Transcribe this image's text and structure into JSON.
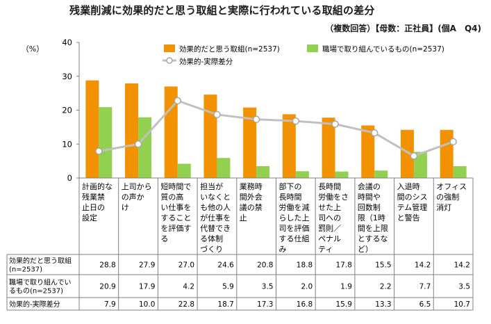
{
  "title": "残業削減に効果的だと思う取組と実際に行われている取組の差分",
  "subtitle": "（複数回答）【母数：正社員】(個A　Q4)",
  "y_unit": "（%）",
  "colors": {
    "effective": "#F39200",
    "implemented": "#92D050",
    "difference": "#C0C0C0",
    "grid": "#808080"
  },
  "chart_data": {
    "type": "bar",
    "ylim": [
      0,
      40
    ],
    "yticks": [
      0,
      10,
      20,
      30,
      40
    ],
    "grid": false,
    "legend_position": "top-right",
    "categories": [
      "計画的な残業禁止日の設定",
      "上司からの声かけ",
      "短時間で質の高い仕事をすることを評価する",
      "担当がいなくとも他の人が仕事を代替できる体制づくり",
      "業務時間外会議の禁止",
      "部下の長時間労働を減らした上司を評価する仕組み",
      "長時間労働をさせた上司への罰則／ペナルティ",
      "会議の時間や回数制限（1時間を上限とするなど）",
      "入退時間のシステム管理と警告",
      "オフィスの強制消灯"
    ],
    "category_lines": [
      [
        "計画的な",
        "残業禁",
        "止日の",
        "設定"
      ],
      [
        "上司から",
        "の声か",
        "け"
      ],
      [
        "短時間で",
        "質の高",
        "い仕事を",
        "すること",
        "を評価す",
        "る"
      ],
      [
        "担当が",
        "いなくと",
        "も他の人",
        "が仕事を",
        "代替でき",
        "る体制",
        "づくり"
      ],
      [
        "業務時",
        "間外会",
        "議の禁",
        "止"
      ],
      [
        "部下の",
        "長時間",
        "労働を減",
        "らした上",
        "司を評価",
        "する仕組",
        "み"
      ],
      [
        "長時間",
        "労働をさ",
        "せた上",
        "司への",
        "罰則／",
        "ペナル",
        "ティ"
      ],
      [
        "会議の",
        "時間や",
        "回数制",
        "限（1時",
        "間を上限",
        "とするな",
        "ど）"
      ],
      [
        "入退時",
        "間のシス",
        "テム管理",
        "と警告"
      ],
      [
        "オフィス",
        "の強制",
        "消灯"
      ]
    ],
    "series": [
      {
        "name": "効果的だと思う取組(n=2537)",
        "table_label": [
          "効果的だと思う取組",
          "(n=2537)"
        ],
        "type": "bar",
        "values": [
          28.8,
          27.9,
          27.0,
          24.6,
          20.8,
          18.8,
          17.8,
          15.5,
          14.2,
          14.2
        ],
        "display": [
          "28.8",
          "27.9",
          "27.0",
          "24.6",
          "20.8",
          "18.8",
          "17.8",
          "15.5",
          "14.2",
          "14.2"
        ]
      },
      {
        "name": "職場で取り組んでいるもの(n=2537)",
        "table_label": [
          "職場で取り組んでい",
          "るもの(n=2537)"
        ],
        "type": "bar",
        "values": [
          20.9,
          17.9,
          4.2,
          5.9,
          3.5,
          2.0,
          1.9,
          2.2,
          7.7,
          3.5
        ],
        "display": [
          "20.9",
          "17.9",
          "4.2",
          "5.9",
          "3.5",
          "2.0",
          "1.9",
          "2.2",
          "7.7",
          "3.5"
        ]
      },
      {
        "name": "効果的-実際差分",
        "table_label": [
          "効果的-実際差分"
        ],
        "type": "line",
        "values": [
          7.9,
          10.0,
          22.8,
          18.7,
          17.3,
          16.8,
          15.9,
          13.3,
          6.5,
          10.7
        ],
        "display": [
          "7.9",
          "10.0",
          "22.8",
          "18.7",
          "17.3",
          "16.8",
          "15.9",
          "13.3",
          "6.5",
          "10.7"
        ]
      }
    ]
  }
}
